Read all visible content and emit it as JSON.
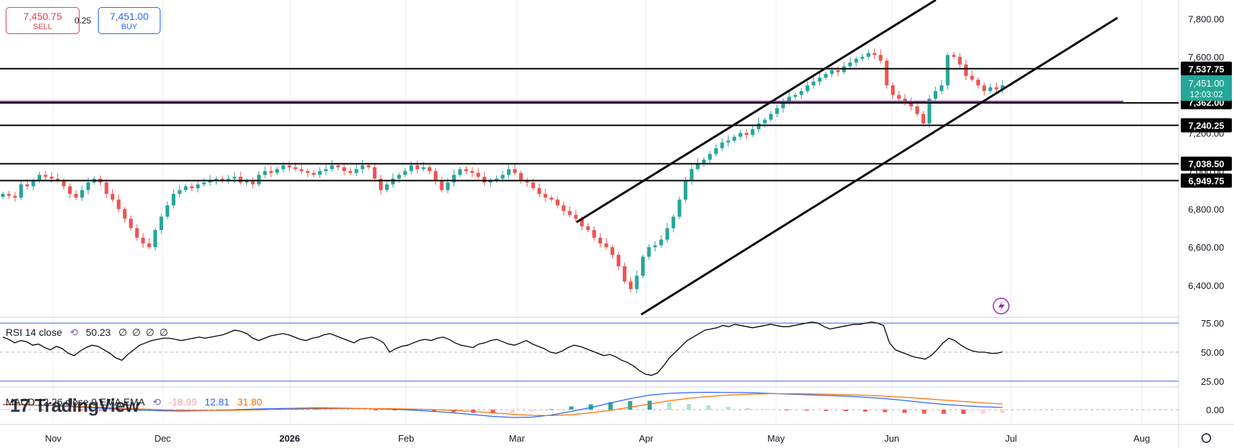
{
  "trade": {
    "sell_price": "7,450.75",
    "sell_label": "SELL",
    "spread": "0.25",
    "buy_price": "7,451.00",
    "buy_label": "BUY"
  },
  "watermark": "17 TradingView",
  "rsi": {
    "name": "RSI 14 close",
    "value": "50.23",
    "extra": [
      "∅",
      "∅",
      "∅",
      "∅"
    ],
    "levels": [
      "75.00",
      "50.00",
      "25.00"
    ]
  },
  "macd": {
    "name": "MACD 12 26 close 9 EMA EMA",
    "hist_value": "-18.99",
    "macd_value": "12.81",
    "signal_value": "31.80",
    "zero_label": "0.00"
  },
  "colors": {
    "up": "#26a69a",
    "down": "#ef5350",
    "rsi_band": "#2962ff",
    "macd_line": "#2962ff",
    "signal_line": "#ff6d00",
    "purple": "#9c27b0"
  },
  "chart_data": {
    "type": "candlestick",
    "ylim": [
      6250,
      7880
    ],
    "price_ticks": [
      "7,800.00",
      "7,600.00",
      "7,200.00",
      "7,000.00",
      "6,800.00",
      "6,600.00",
      "6,400.00"
    ],
    "time_labels": [
      "Nov",
      "Dec",
      "2026",
      "Feb",
      "Mar",
      "Apr",
      "May",
      "Jun",
      "Jul",
      "Aug"
    ],
    "horizontal_levels": [
      {
        "value": 7537.75,
        "label": "7,537.75"
      },
      {
        "value": 7362.0,
        "label": "7,362.00"
      },
      {
        "value": 7240.25,
        "label": "7,240.25"
      },
      {
        "value": 7038.5,
        "label": "7,038.50"
      },
      {
        "value": 6949.75,
        "label": "6,949.75"
      }
    ],
    "last_price": {
      "value": 7451.0,
      "label": "7,451.00",
      "timer": "12:03:02"
    },
    "channel": {
      "lower_start": [
        "2026-03-30",
        6380
      ],
      "lower_end": [
        "2026-07-28",
        7790
      ],
      "upper_start": [
        "2026-03-17",
        6830
      ],
      "upper_end_approx": [
        "2026-06-12",
        7870
      ]
    },
    "ohlc_closes": [
      6880,
      6870,
      6860,
      6930,
      6920,
      6950,
      6980,
      6970,
      6960,
      6950,
      6920,
      6880,
      6860,
      6900,
      6940,
      6960,
      6940,
      6880,
      6850,
      6800,
      6750,
      6700,
      6650,
      6620,
      6600,
      6690,
      6760,
      6820,
      6880,
      6900,
      6920,
      6910,
      6930,
      6940,
      6950,
      6960,
      6950,
      6960,
      6970,
      6940,
      6950,
      6930,
      6980,
      7000,
      6990,
      7010,
      7030,
      7020,
      7010,
      7000,
      6990,
      6980,
      7000,
      7010,
      7030,
      7020,
      7000,
      6990,
      7010,
      7030,
      7020,
      6960,
      6900,
      6930,
      6960,
      6980,
      7000,
      7030,
      7010,
      7020,
      7000,
      6950,
      6900,
      6940,
      6980,
      7010,
      7000,
      6990,
      6970,
      6940,
      6950,
      6960,
      6980,
      7010,
      6990,
      6950,
      6940,
      6910,
      6880,
      6860,
      6850,
      6820,
      6790,
      6770,
      6750,
      6710,
      6690,
      6650,
      6620,
      6600,
      6560,
      6500,
      6420,
      6380,
      6450,
      6550,
      6600,
      6610,
      6640,
      6700,
      6760,
      6850,
      6950,
      7010,
      7040,
      7060,
      7090,
      7120,
      7150,
      7160,
      7180,
      7200,
      7190,
      7220,
      7250,
      7270,
      7300,
      7330,
      7360,
      7390,
      7400,
      7420,
      7450,
      7470,
      7490,
      7510,
      7530,
      7520,
      7550,
      7570,
      7590,
      7600,
      7620,
      7610,
      7580,
      7450,
      7400,
      7380,
      7360,
      7340,
      7300,
      7250,
      7380,
      7420,
      7450,
      7610,
      7600,
      7560,
      7500,
      7480,
      7450,
      7420,
      7440,
      7430,
      7451
    ],
    "rsi_values": [
      63,
      61,
      58,
      60,
      59,
      56,
      57,
      54,
      52,
      55,
      53,
      49,
      47,
      51,
      54,
      56,
      55,
      52,
      49,
      45,
      43,
      48,
      52,
      56,
      58,
      60,
      61,
      62,
      62,
      61,
      60,
      61,
      62,
      63,
      62,
      63,
      64,
      65,
      67,
      69,
      68,
      66,
      62,
      60,
      62,
      64,
      65,
      66,
      65,
      63,
      61,
      60,
      62,
      63,
      65,
      66,
      64,
      62,
      60,
      58,
      61,
      62,
      63,
      61,
      58,
      50,
      53,
      55,
      56,
      58,
      60,
      61,
      60,
      62,
      63,
      61,
      58,
      56,
      55,
      54,
      57,
      58,
      60,
      61,
      59,
      57,
      56,
      58,
      60,
      57,
      55,
      53,
      50,
      49,
      51,
      54,
      56,
      55,
      53,
      51,
      49,
      47,
      48,
      46,
      43,
      41,
      38,
      34,
      31,
      30,
      32,
      38,
      45,
      50,
      55,
      60,
      63,
      66,
      69,
      70,
      71,
      73,
      72,
      74,
      73,
      72,
      71,
      72,
      73,
      74,
      73,
      72,
      72,
      73,
      74,
      75,
      76,
      75,
      72,
      70,
      71,
      72,
      73,
      74,
      74,
      75,
      76,
      75,
      73,
      58,
      52,
      50,
      48,
      46,
      45,
      44,
      47,
      52,
      58,
      62,
      60,
      56,
      53,
      51,
      50,
      50,
      49,
      49,
      50.23
    ],
    "macd_line": [
      30,
      28,
      24,
      20,
      14,
      8,
      3,
      -2,
      -6,
      -8,
      -6,
      -3,
      0,
      4,
      6,
      8,
      10,
      9,
      7,
      5,
      2,
      -3,
      -10,
      -18,
      -28,
      -38,
      -44,
      -42,
      -30,
      -10,
      12,
      38,
      62,
      82,
      92,
      96,
      98,
      97,
      96,
      92,
      88,
      84,
      80,
      76,
      70,
      62,
      52,
      40,
      30,
      22,
      16,
      12.81
    ],
    "signal_line": [
      28,
      27,
      25,
      22,
      18,
      13,
      8,
      4,
      0,
      -3,
      -4,
      -4,
      -3,
      -1,
      1,
      3,
      5,
      6,
      6,
      6,
      5,
      3,
      0,
      -4,
      -10,
      -18,
      -26,
      -32,
      -33,
      -28,
      -18,
      -4,
      14,
      32,
      50,
      64,
      74,
      82,
      87,
      90,
      90,
      89,
      87,
      84,
      81,
      76,
      70,
      62,
      54,
      46,
      38,
      31.8
    ]
  }
}
